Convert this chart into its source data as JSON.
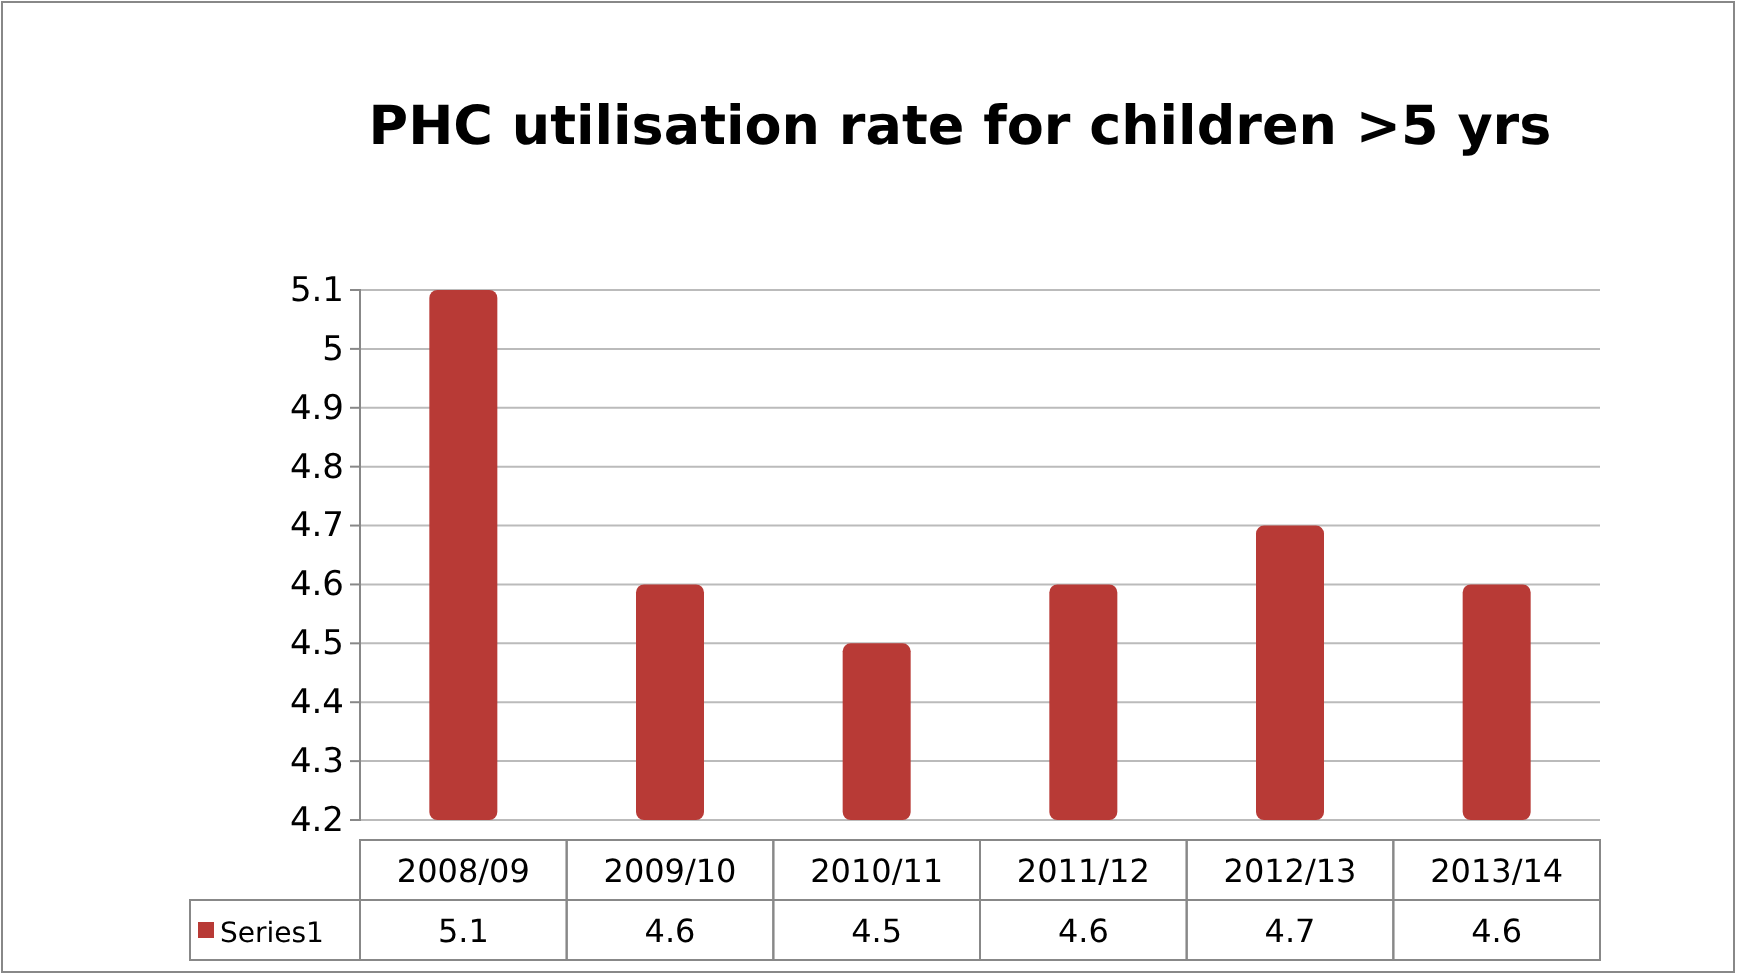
{
  "chart_data": {
    "type": "bar",
    "title": "PHC  utilisation rate for children >5 yrs",
    "categories": [
      "2008/09",
      "2009/10",
      "2010/11",
      "2011/12",
      "2012/13",
      "2013/14"
    ],
    "series": [
      {
        "name": "Series1",
        "color": "#b83a36",
        "values": [
          5.1,
          4.6,
          4.5,
          4.6,
          4.7,
          4.6
        ]
      }
    ],
    "ylim": [
      4.2,
      5.1
    ],
    "yticks": [
      4.2,
      4.3,
      4.4,
      4.5,
      4.6,
      4.7,
      4.8,
      4.9,
      5,
      5.1
    ],
    "grid": "y",
    "data_labels": true,
    "legend": "bottom left"
  }
}
